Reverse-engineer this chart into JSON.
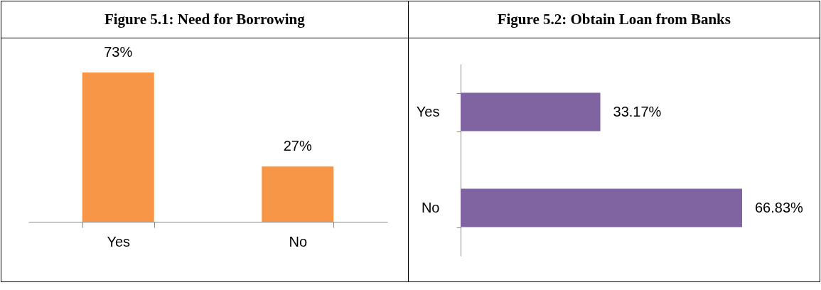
{
  "chart_data": [
    {
      "type": "bar",
      "title": "Figure 5.1: Need for Borrowing",
      "categories": [
        "Yes",
        "No"
      ],
      "values": [
        73,
        27
      ],
      "value_labels": [
        "73%",
        "27%"
      ],
      "color": "#f79646"
    },
    {
      "type": "bar",
      "orientation": "horizontal",
      "title": "Figure 5.2: Obtain Loan from Banks",
      "categories": [
        "Yes",
        "No"
      ],
      "values": [
        33.17,
        66.83
      ],
      "value_labels": [
        "33.17%",
        "66.83%"
      ],
      "color": "#8064a2"
    }
  ]
}
